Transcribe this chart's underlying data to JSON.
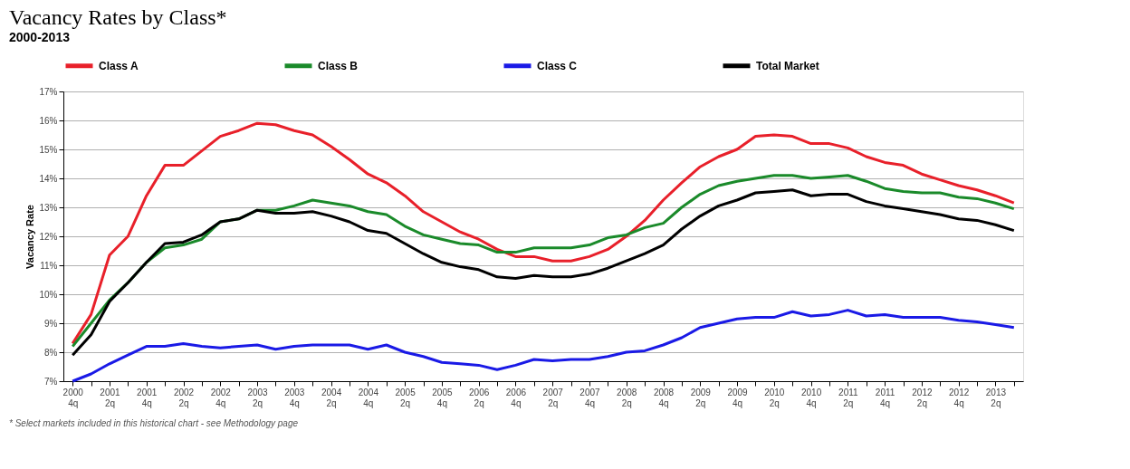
{
  "chart_data": {
    "type": "line",
    "title": "Vacancy Rates by Class*",
    "subtitle": "2000-2013",
    "ylabel": "Vacancy Rate",
    "categories": [
      "2000 4q",
      null,
      "2001 2q",
      null,
      "2001 4q",
      null,
      "2002 2q",
      null,
      "2002 4q",
      null,
      "2003 2q",
      null,
      "2003 4q",
      null,
      "2004 2q",
      null,
      "2004 4q",
      null,
      "2005 2q",
      null,
      "2005 4q",
      null,
      "2006 2q",
      null,
      "2006 4q",
      null,
      "2007 2q",
      null,
      "2007 4q",
      null,
      "2008 2q",
      null,
      "2008 4q",
      null,
      "2009 2q",
      null,
      "2009 4q",
      null,
      "2010 2q",
      null,
      "2010 4q",
      null,
      "2011 2q",
      null,
      "2011 4q",
      null,
      "2012 2q",
      null,
      "2012 4q",
      null,
      "2013 2q",
      null
    ],
    "series": [
      {
        "name": "Class A",
        "color": "#e8202a",
        "values": [
          8.3,
          9.3,
          11.35,
          12.0,
          13.4,
          14.45,
          14.45,
          14.95,
          15.45,
          15.65,
          15.9,
          15.85,
          15.65,
          15.5,
          15.1,
          14.65,
          14.15,
          13.85,
          13.4,
          12.85,
          12.5,
          12.15,
          11.9,
          11.55,
          11.3,
          11.3,
          11.15,
          11.15,
          11.3,
          11.55,
          12.0,
          12.55,
          13.25,
          13.85,
          14.4,
          14.75,
          15.0,
          15.45,
          15.5,
          15.45,
          15.2,
          15.2,
          15.05,
          14.75,
          14.55,
          14.45,
          14.15,
          13.95,
          13.75,
          13.6,
          13.4,
          13.15
        ]
      },
      {
        "name": "Class B",
        "color": "#1a8a2a",
        "values": [
          8.2,
          9.0,
          9.8,
          10.4,
          11.1,
          11.6,
          11.7,
          11.9,
          12.5,
          12.6,
          12.9,
          12.9,
          13.05,
          13.25,
          13.15,
          13.05,
          12.85,
          12.75,
          12.35,
          12.05,
          11.9,
          11.75,
          11.7,
          11.45,
          11.45,
          11.6,
          11.6,
          11.6,
          11.7,
          11.95,
          12.05,
          12.3,
          12.45,
          13.0,
          13.45,
          13.75,
          13.9,
          14.0,
          14.1,
          14.1,
          14.0,
          14.05,
          14.1,
          13.9,
          13.65,
          13.55,
          13.5,
          13.5,
          13.35,
          13.3,
          13.15,
          12.95
        ]
      },
      {
        "name": "Class C",
        "color": "#1a1ae6",
        "values": [
          7.0,
          7.25,
          7.6,
          7.9,
          8.2,
          8.2,
          8.3,
          8.2,
          8.15,
          8.2,
          8.25,
          8.1,
          8.2,
          8.25,
          8.25,
          8.25,
          8.1,
          8.25,
          8.0,
          7.85,
          7.65,
          7.6,
          7.55,
          7.4,
          7.55,
          7.75,
          7.7,
          7.75,
          7.75,
          7.85,
          8.0,
          8.05,
          8.25,
          8.5,
          8.85,
          9.0,
          9.15,
          9.2,
          9.2,
          9.4,
          9.25,
          9.3,
          9.45,
          9.25,
          9.3,
          9.2,
          9.2,
          9.2,
          9.1,
          9.05,
          8.95,
          8.85
        ]
      },
      {
        "name": "Total Market",
        "color": "#000000",
        "values": [
          7.9,
          8.6,
          9.75,
          10.4,
          11.1,
          11.75,
          11.8,
          12.05,
          12.5,
          12.6,
          12.9,
          12.8,
          12.8,
          12.85,
          12.7,
          12.5,
          12.2,
          12.1,
          11.75,
          11.4,
          11.1,
          10.95,
          10.85,
          10.6,
          10.55,
          10.65,
          10.6,
          10.6,
          10.7,
          10.9,
          11.15,
          11.4,
          11.7,
          12.25,
          12.7,
          13.05,
          13.25,
          13.5,
          13.55,
          13.6,
          13.4,
          13.45,
          13.45,
          13.2,
          13.05,
          12.95,
          12.85,
          12.75,
          12.6,
          12.55,
          12.4,
          12.2
        ]
      }
    ],
    "ylim": [
      7,
      17
    ],
    "yticks": [
      {
        "value": 7,
        "label": "7%"
      },
      {
        "value": 8,
        "label": "8%"
      },
      {
        "value": 9,
        "label": "9%"
      },
      {
        "value": 10,
        "label": "10%"
      },
      {
        "value": 11,
        "label": "11%"
      },
      {
        "value": 12,
        "label": "12%"
      },
      {
        "value": 13,
        "label": "13%"
      },
      {
        "value": 14,
        "label": "14%"
      },
      {
        "value": 15,
        "label": "15%"
      },
      {
        "value": 16,
        "label": "16%"
      },
      {
        "value": 17,
        "label": "17%"
      }
    ],
    "grid": "y",
    "legend": "top",
    "marker": "none",
    "line_style": "solid",
    "annotations": [
      "* Select markets included in this historical chart - see Methodology page"
    ]
  }
}
